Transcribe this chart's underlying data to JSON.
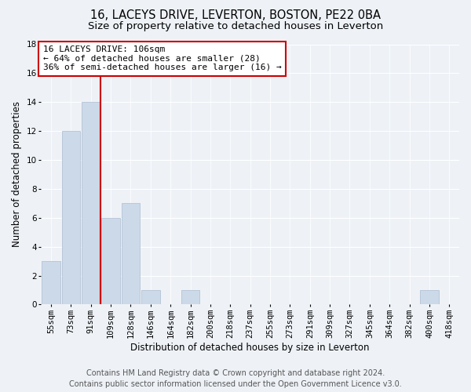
{
  "title1": "16, LACEYS DRIVE, LEVERTON, BOSTON, PE22 0BA",
  "title2": "Size of property relative to detached houses in Leverton",
  "xlabel": "Distribution of detached houses by size in Leverton",
  "ylabel": "Number of detached properties",
  "categories": [
    "55sqm",
    "73sqm",
    "91sqm",
    "109sqm",
    "128sqm",
    "146sqm",
    "164sqm",
    "182sqm",
    "200sqm",
    "218sqm",
    "237sqm",
    "255sqm",
    "273sqm",
    "291sqm",
    "309sqm",
    "327sqm",
    "345sqm",
    "364sqm",
    "382sqm",
    "400sqm",
    "418sqm"
  ],
  "values": [
    3,
    12,
    14,
    6,
    7,
    1,
    0,
    1,
    0,
    0,
    0,
    0,
    0,
    0,
    0,
    0,
    0,
    0,
    0,
    1,
    0
  ],
  "bar_color": "#ccd9e8",
  "bar_edgecolor": "#aabbd0",
  "vline_x": 2.5,
  "vline_color": "#cc0000",
  "annotation_text1": "16 LACEYS DRIVE: 106sqm",
  "annotation_text2": "← 64% of detached houses are smaller (28)",
  "annotation_text3": "36% of semi-detached houses are larger (16) →",
  "annotation_box_color": "#ffffff",
  "annotation_box_edgecolor": "#cc0000",
  "ylim": [
    0,
    18
  ],
  "yticks": [
    0,
    2,
    4,
    6,
    8,
    10,
    12,
    14,
    16,
    18
  ],
  "footer1": "Contains HM Land Registry data © Crown copyright and database right 2024.",
  "footer2": "Contains public sector information licensed under the Open Government Licence v3.0.",
  "background_color": "#eef2f7",
  "plot_background": "#eef2f7",
  "grid_color": "#ffffff",
  "title1_fontsize": 10.5,
  "title2_fontsize": 9.5,
  "xlabel_fontsize": 8.5,
  "ylabel_fontsize": 8.5,
  "tick_fontsize": 7.5,
  "footer_fontsize": 7,
  "annotation_fontsize": 8
}
